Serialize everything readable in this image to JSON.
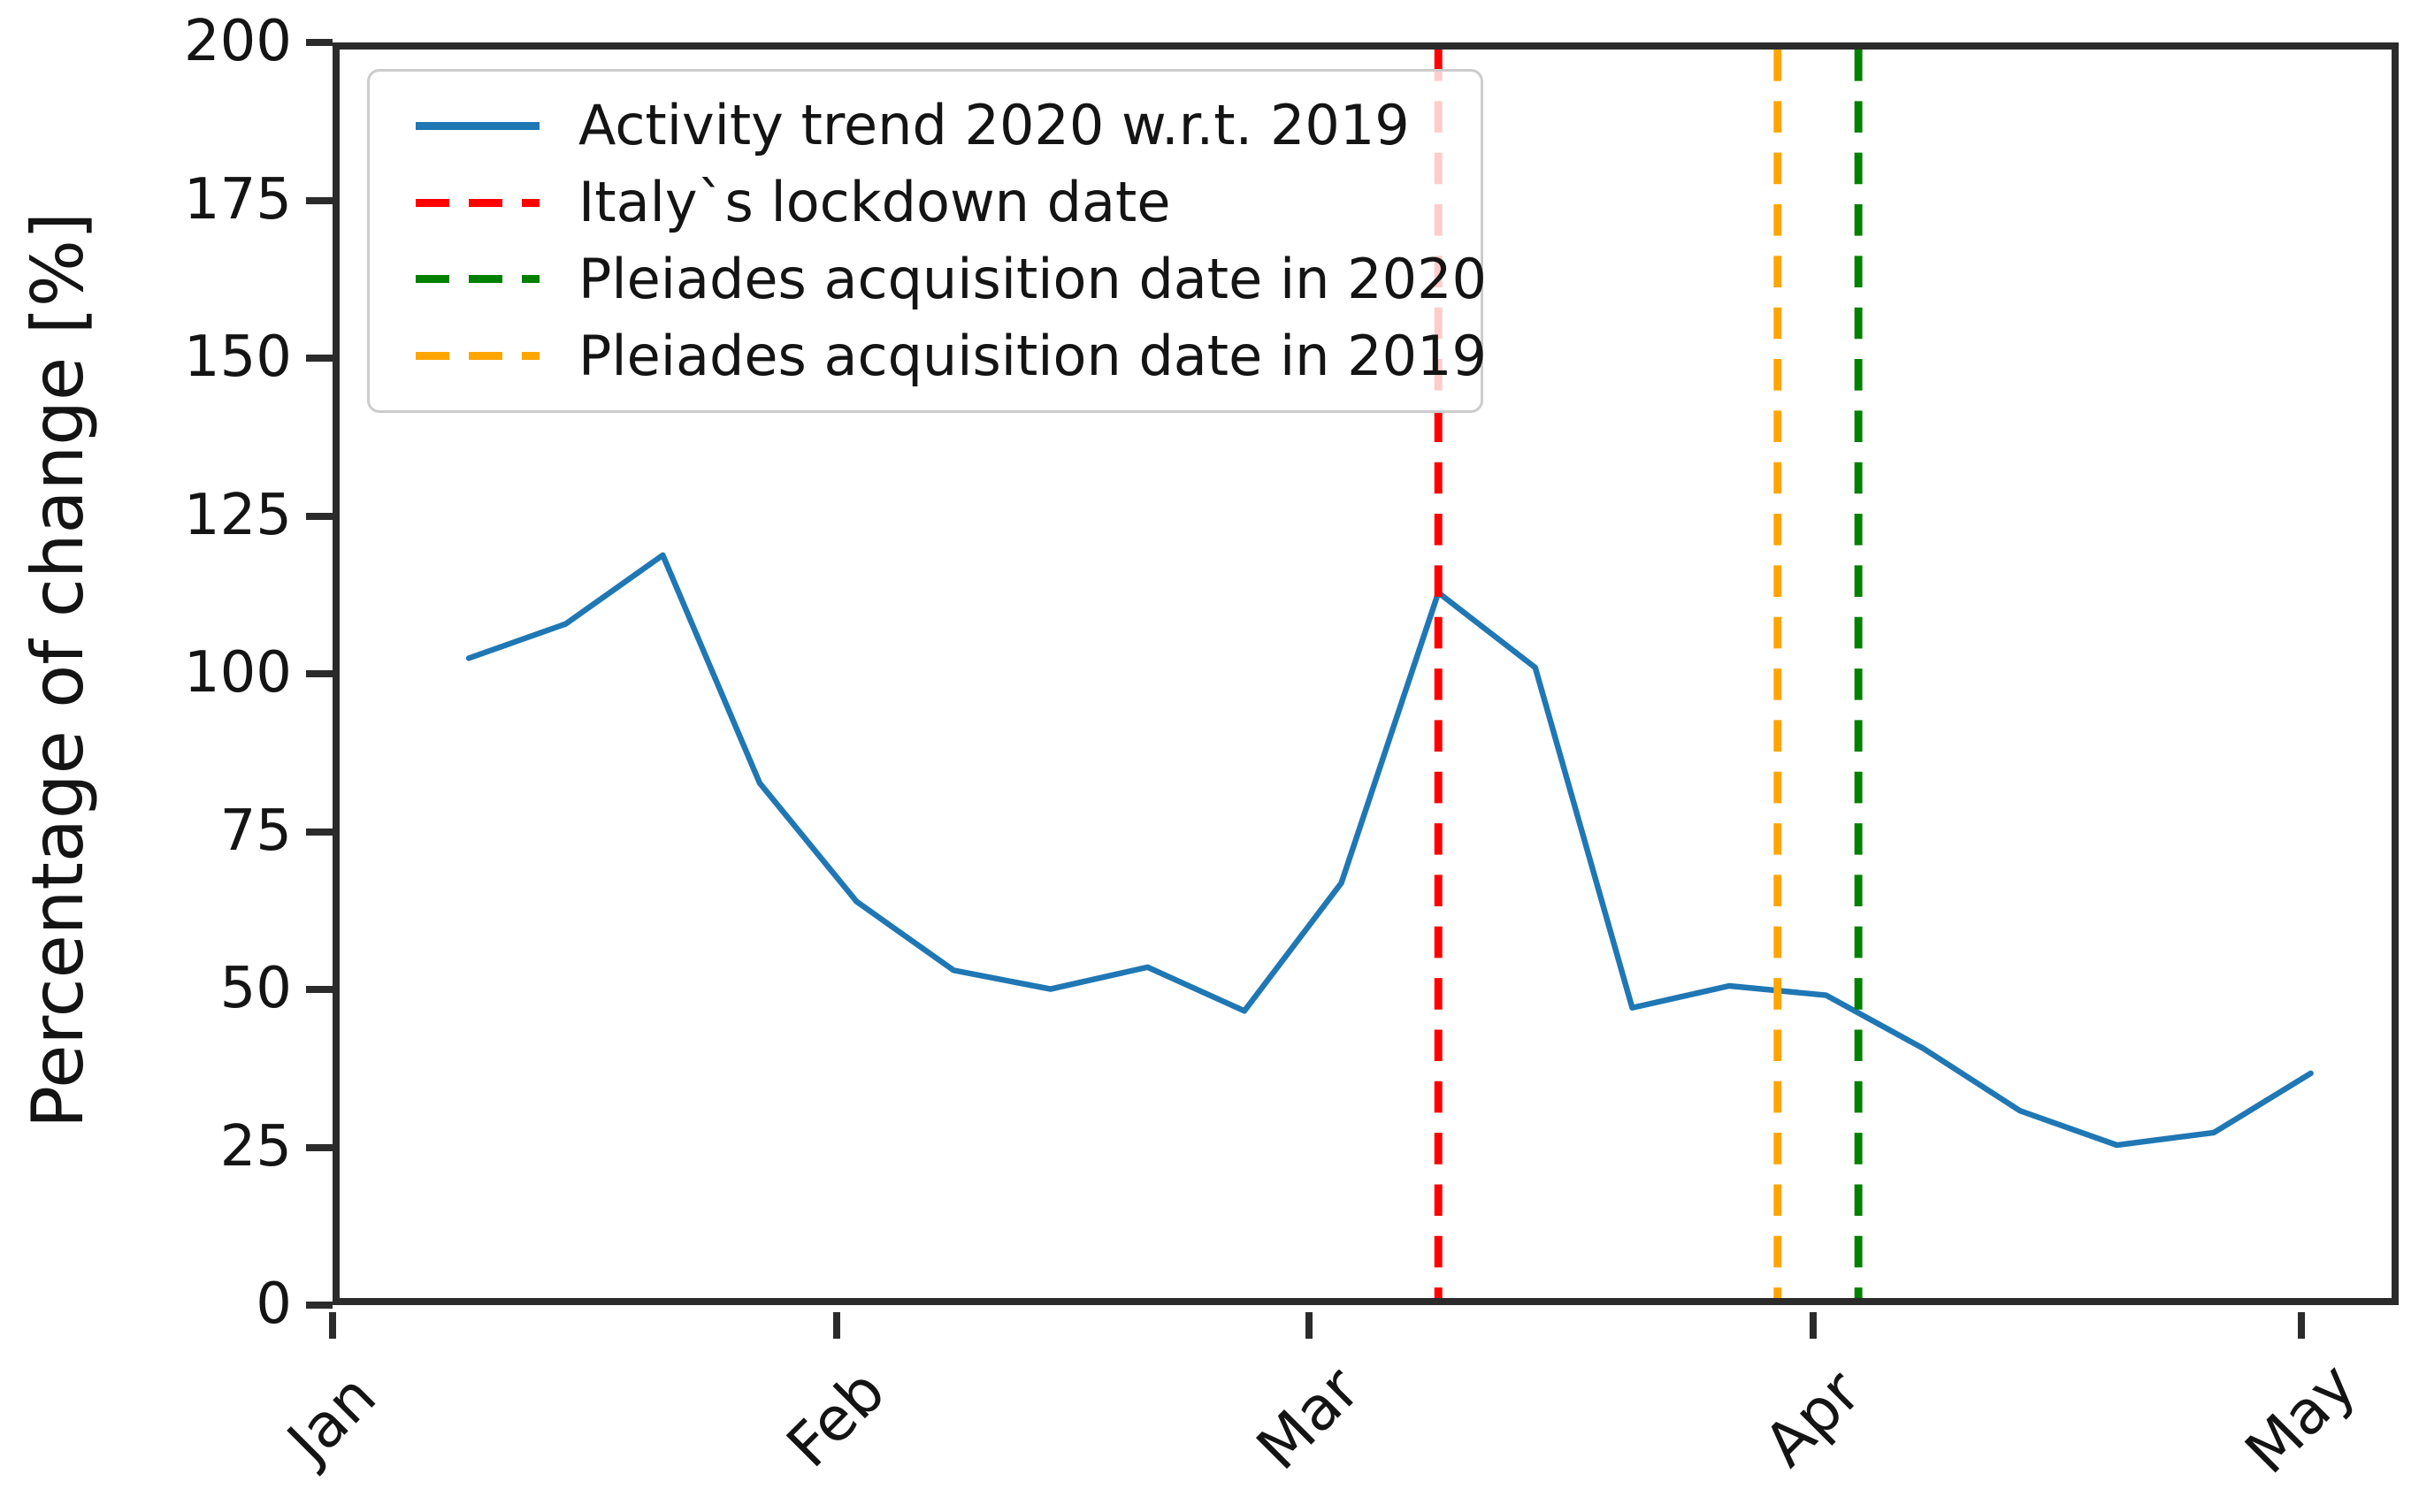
{
  "colors": {
    "activity_line": "#1f77b4",
    "lockdown_line": "#ff0000",
    "pleiades_2020_line": "#008000",
    "pleiades_2019_line": "#ffa500",
    "axis": "#2b2b2b",
    "text": "#141414",
    "legend_border": "#cccccc"
  },
  "chart_data": {
    "type": "line",
    "title": "",
    "xlabel": "",
    "ylabel": "Percentage of change [%]",
    "ylim": [
      0,
      200
    ],
    "yticks": [
      0,
      25,
      50,
      75,
      100,
      125,
      150,
      175,
      200
    ],
    "xlim_days": [
      0,
      127
    ],
    "x_month_ticks": [
      {
        "label": "Jan",
        "day": 0
      },
      {
        "label": "Feb",
        "day": 31
      },
      {
        "label": "Mar",
        "day": 60
      },
      {
        "label": "Apr",
        "day": 91
      },
      {
        "label": "May",
        "day": 121
      }
    ],
    "grid": false,
    "legend_position": "upper left",
    "series": [
      {
        "name": "Activity trend 2020 w.r.t. 2019",
        "style": "solid",
        "color": "#1f77b4",
        "x_days": [
          8,
          14,
          20,
          26,
          32,
          38,
          44,
          50,
          56,
          62,
          68,
          74,
          80,
          86,
          92,
          98,
          104,
          110,
          116,
          122
        ],
        "dates": [
          "Jan 9",
          "Jan 15",
          "Jan 21",
          "Jan 27",
          "Feb 2",
          "Feb 8",
          "Feb 14",
          "Feb 20",
          "Feb 26",
          "Mar 3",
          "Mar 9",
          "Mar 15",
          "Mar 21",
          "Mar 27",
          "Apr 2",
          "Apr 8",
          "Apr 14",
          "Apr 20",
          "Apr 26",
          "May 2"
        ],
        "values": [
          102.5,
          108,
          119,
          82.5,
          63.5,
          52.5,
          49.5,
          53,
          46,
          66.5,
          113,
          101,
          46.5,
          50,
          48.5,
          40,
          30,
          24.5,
          26.5,
          36
        ]
      }
    ],
    "vlines": [
      {
        "name": "Italy`s lockdown date",
        "style": "dashed",
        "color": "#ff0000",
        "day": 68,
        "date": "Mar 9"
      },
      {
        "name": "Pleiades acquisition date in 2019",
        "style": "dashed",
        "color": "#ffa500",
        "day": 89,
        "date": "Mar 30"
      },
      {
        "name": "Pleiades acquisition date in 2020",
        "style": "dashed",
        "color": "#008000",
        "day": 94,
        "date": "Apr 4"
      }
    ],
    "legend_entries": [
      {
        "label": "Activity trend 2020 w.r.t. 2019",
        "style": "solid",
        "color": "#1f77b4"
      },
      {
        "label": "Italy`s lockdown date",
        "style": "dashed",
        "color": "#ff0000"
      },
      {
        "label": "Pleiades acquisition date in 2020",
        "style": "dashed",
        "color": "#008000"
      },
      {
        "label": "Pleiades acquisition date in 2019",
        "style": "dashed",
        "color": "#ffa500"
      }
    ]
  }
}
